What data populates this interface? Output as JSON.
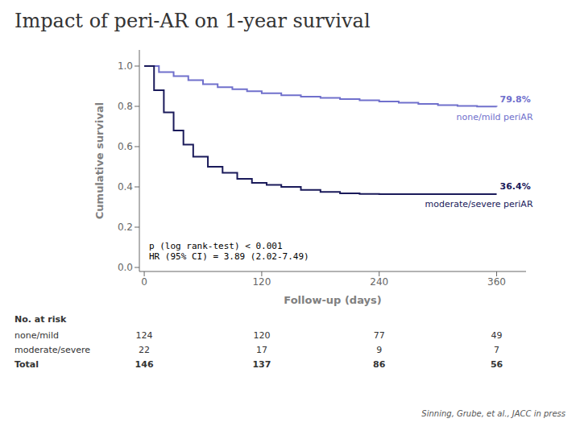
{
  "chart_data": {
    "type": "line",
    "title": "Impact of peri-AR on 1-year survival",
    "x_label": "Follow-up (days)",
    "y_label": "Cumulative survival",
    "xlim": [
      -5,
      390
    ],
    "ylim": [
      -0.02,
      1.08
    ],
    "xticks": [
      0,
      120,
      240,
      360
    ],
    "yticks": [
      {
        "value": 0.0,
        "label": "0.0"
      },
      0.2,
      0.4,
      0.6,
      0.8,
      {
        "value": 1.0,
        "label": "1.0"
      }
    ],
    "grid": false,
    "line_style": "step",
    "series": [
      {
        "name": "none/mild periAR",
        "color": "#7070cc",
        "end_label": "79.8%",
        "x": [
          0,
          15,
          30,
          45,
          60,
          75,
          90,
          105,
          120,
          140,
          160,
          180,
          200,
          220,
          240,
          260,
          280,
          300,
          320,
          340,
          360
        ],
        "values": [
          1.0,
          0.97,
          0.95,
          0.93,
          0.91,
          0.895,
          0.885,
          0.875,
          0.865,
          0.855,
          0.848,
          0.842,
          0.836,
          0.83,
          0.824,
          0.818,
          0.812,
          0.806,
          0.802,
          0.799,
          0.798
        ]
      },
      {
        "name": "moderate/severe periAR",
        "color": "#1a1a5a",
        "end_label": "36.4%",
        "x": [
          0,
          10,
          20,
          30,
          40,
          50,
          65,
          80,
          95,
          110,
          125,
          140,
          160,
          180,
          200,
          220,
          240,
          280,
          320,
          360
        ],
        "values": [
          1.0,
          0.88,
          0.77,
          0.68,
          0.61,
          0.55,
          0.5,
          0.47,
          0.44,
          0.42,
          0.41,
          0.4,
          0.385,
          0.375,
          0.368,
          0.365,
          0.364,
          0.364,
          0.364,
          0.364
        ]
      }
    ],
    "annotation": "p (log rank-test) < 0.001\nHR (95% CI) = 3.89 (2.02-7.49)",
    "footer": "Sinning, Grube, et al., JACC in press",
    "risk_table": {
      "header": "No. at risk",
      "x": [
        0,
        120,
        240,
        360
      ],
      "rows": [
        {
          "label": "none/mild",
          "values": [
            124,
            120,
            77,
            49
          ]
        },
        {
          "label": "moderate/severe",
          "values": [
            22,
            17,
            9,
            7
          ]
        },
        {
          "label": "Total",
          "values": [
            146,
            137,
            86,
            56
          ]
        }
      ]
    }
  }
}
